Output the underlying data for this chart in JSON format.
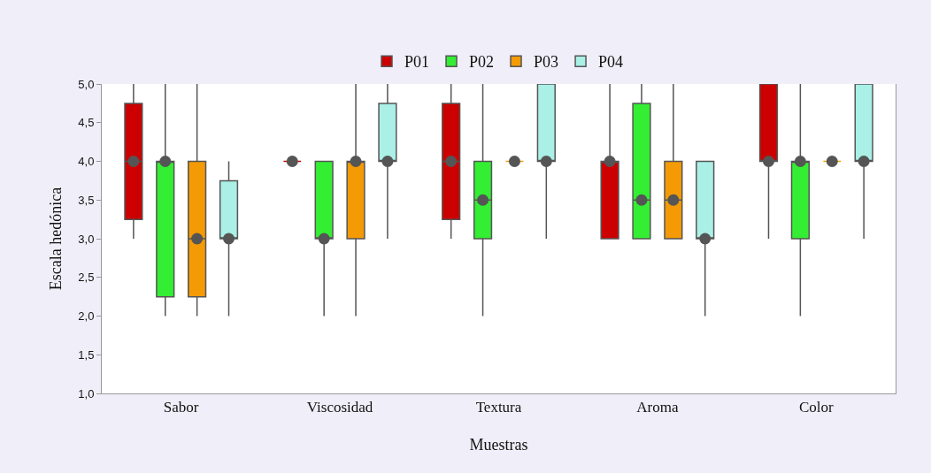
{
  "chart_data": {
    "type": "box",
    "xlabel": "Muestras",
    "ylabel": "Escala hedónica",
    "categories": [
      "Sabor",
      "Viscosidad",
      "Textura",
      "Aroma",
      "Color"
    ],
    "ylim": [
      1,
      5
    ],
    "yticks": [
      {
        "value": 1,
        "label": "1,0"
      },
      {
        "value": 1.5,
        "label": "1,5"
      },
      {
        "value": 2,
        "label": "2,0"
      },
      {
        "value": 2.5,
        "label": "2,5"
      },
      {
        "value": 3,
        "label": "3,0"
      },
      {
        "value": 3.5,
        "label": "3,5"
      },
      {
        "value": 4,
        "label": "4,0"
      },
      {
        "value": 4.5,
        "label": "4,5"
      },
      {
        "value": 5,
        "label": "5,0"
      }
    ],
    "grid": false,
    "legend": "top",
    "series": [
      {
        "name": "P01",
        "color": "#cc0000",
        "boxes": [
          {
            "low": 3,
            "q1": 3.25,
            "median": 4,
            "q3": 4.75,
            "high": 5
          },
          {
            "low": 4,
            "q1": 4,
            "median": 4,
            "q3": 4,
            "high": 4
          },
          {
            "low": 3,
            "q1": 3.25,
            "median": 4,
            "q3": 4.75,
            "high": 5
          },
          {
            "low": 3,
            "q1": 3,
            "median": 4,
            "q3": 4,
            "high": 5
          },
          {
            "low": 3,
            "q1": 4,
            "median": 4,
            "q3": 5,
            "high": 5
          }
        ]
      },
      {
        "name": "P02",
        "color": "#33ee33",
        "boxes": [
          {
            "low": 2,
            "q1": 2.25,
            "median": 4,
            "q3": 4,
            "high": 5
          },
          {
            "low": 2,
            "q1": 3,
            "median": 3,
            "q3": 4,
            "high": 4
          },
          {
            "low": 2,
            "q1": 3,
            "median": 3.5,
            "q3": 4,
            "high": 5
          },
          {
            "low": 3,
            "q1": 3,
            "median": 3.5,
            "q3": 4.75,
            "high": 5
          },
          {
            "low": 2,
            "q1": 3,
            "median": 4,
            "q3": 4,
            "high": 5
          }
        ]
      },
      {
        "name": "P03",
        "color": "#f39a05",
        "boxes": [
          {
            "low": 2,
            "q1": 2.25,
            "median": 3,
            "q3": 4,
            "high": 5
          },
          {
            "low": 2,
            "q1": 3,
            "median": 4,
            "q3": 4,
            "high": 5
          },
          {
            "low": 4,
            "q1": 4,
            "median": 4,
            "q3": 4,
            "high": 4
          },
          {
            "low": 3,
            "q1": 3,
            "median": 3.5,
            "q3": 4,
            "high": 5
          },
          {
            "low": 4,
            "q1": 4,
            "median": 4,
            "q3": 4,
            "high": 4
          }
        ]
      },
      {
        "name": "P04",
        "color": "#aaf0e6",
        "boxes": [
          {
            "low": 2,
            "q1": 3,
            "median": 3,
            "q3": 3.75,
            "high": 4
          },
          {
            "low": 3,
            "q1": 4,
            "median": 4,
            "q3": 4.75,
            "high": 5
          },
          {
            "low": 3,
            "q1": 4,
            "median": 4,
            "q3": 5,
            "high": 5
          },
          {
            "low": 2,
            "q1": 3,
            "median": 3,
            "q3": 4,
            "high": 4
          },
          {
            "low": 3,
            "q1": 4,
            "median": 4,
            "q3": 5,
            "high": 5
          }
        ]
      },
      {
        "type": "scatter",
        "marker": "circle",
        "color": "#555555",
        "x": [
          "Sabor",
          "Viscosidad",
          "Textura",
          "Aroma",
          "Color"
        ],
        "values": [
          4,
          4,
          4,
          4,
          4
        ]
      },
      {
        "type": "scatter",
        "marker": "circle",
        "color": "#555555",
        "x": [
          "Sabor",
          "Viscosidad",
          "Textura",
          "Aroma",
          "Color"
        ],
        "values": [
          4,
          3,
          3.5,
          3.5,
          4
        ]
      },
      {
        "type": "scatter",
        "marker": "circle",
        "color": "#555555",
        "x": [
          "Sabor",
          "Viscosidad",
          "Textura",
          "Aroma",
          "Color"
        ],
        "values": [
          3,
          4,
          4,
          3.5,
          4
        ]
      },
      {
        "type": "scatter",
        "marker": "circle",
        "color": "#555555",
        "x": [
          "Sabor",
          "Viscosidad",
          "Textura",
          "Aroma",
          "Color"
        ],
        "values": [
          3,
          4,
          4,
          3,
          4
        ]
      }
    ]
  }
}
